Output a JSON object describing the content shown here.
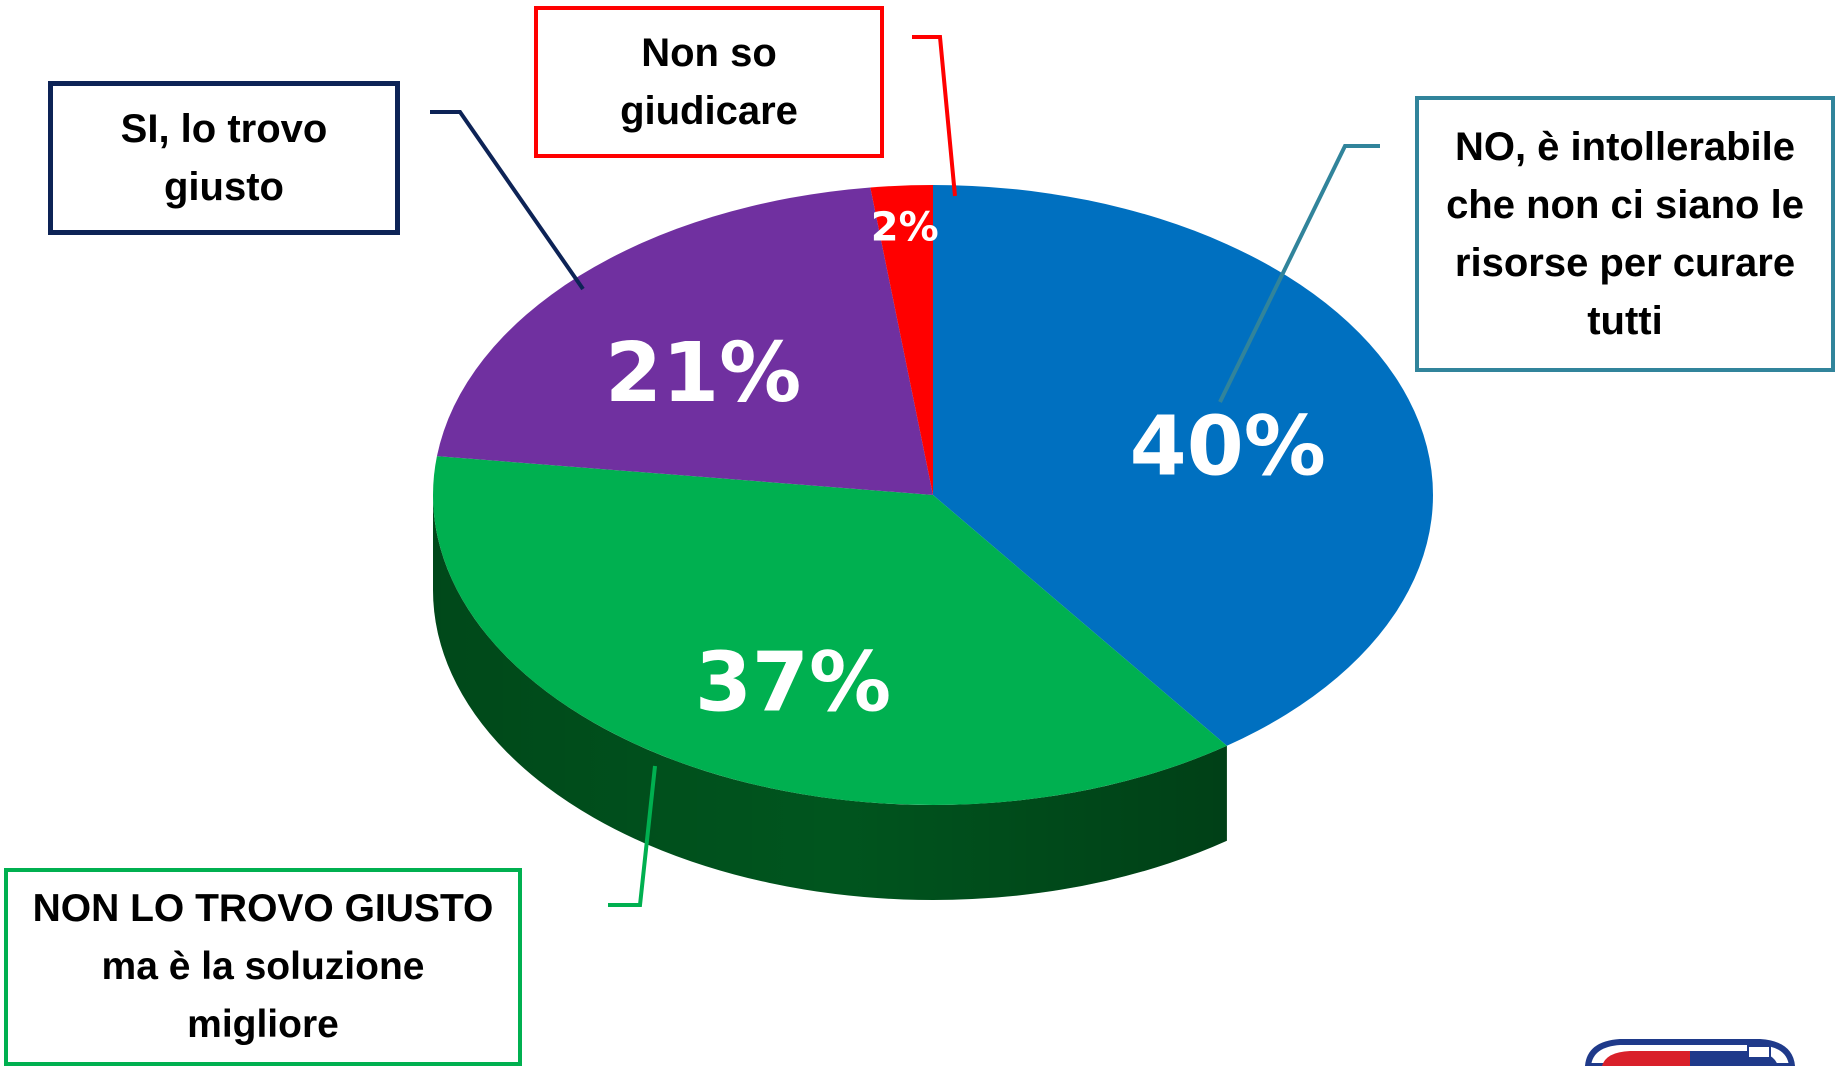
{
  "chart_data": {
    "type": "pie",
    "title": "",
    "slices": [
      {
        "label_lines": [
          "NO, è intollerabile",
          "che non ci siano le",
          "risorse per curare",
          "tutti"
        ],
        "value": 40,
        "value_label": "40%",
        "color": "#0070c0",
        "side_color": "#002d55"
      },
      {
        "label_lines": [
          "NON LO TROVO GIUSTO",
          "ma è la soluzione",
          "migliore"
        ],
        "value": 37,
        "value_label": "37%",
        "color": "#00b050",
        "side_color": "#00551e"
      },
      {
        "label_lines": [
          "SI, lo trovo",
          "giusto"
        ],
        "value": 21,
        "value_label": "21%",
        "color": "#7030a0",
        "side_color": "#3d1a57"
      },
      {
        "label_lines": [
          "Non so",
          "giudicare"
        ],
        "value": 2,
        "value_label": "2%",
        "color": "#ff0000",
        "side_color": "#8b0000"
      }
    ],
    "style": "3d-pie",
    "legend": "callout-boxes"
  },
  "colors": {
    "no_box_border": "#31849b",
    "si_box_border": "#0d2356",
    "nonlo_box_border": "#00b050",
    "nonso_box_border": "#ff0000"
  },
  "logo": {
    "icon": "badge-logo-icon"
  }
}
